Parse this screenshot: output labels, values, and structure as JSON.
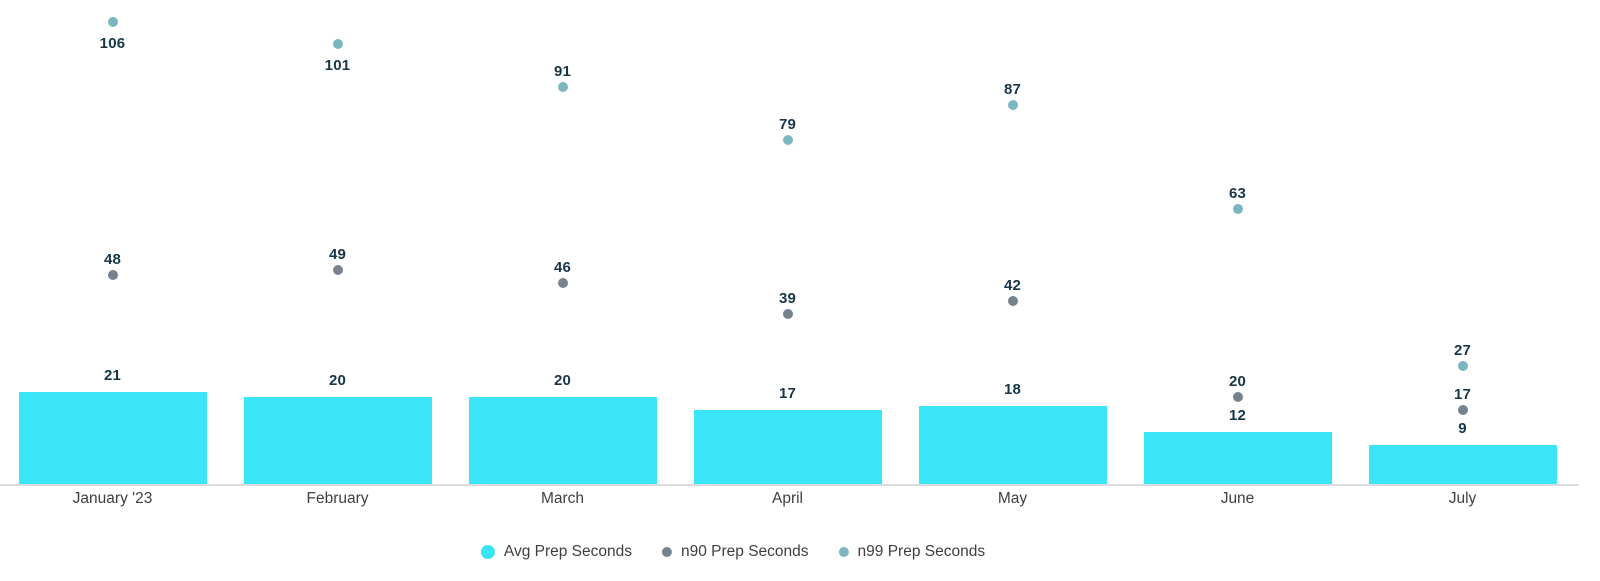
{
  "chart_data": {
    "type": "combo",
    "title": "",
    "xlabel": "",
    "ylabel": "",
    "categories": [
      "January '23",
      "February",
      "March",
      "April",
      "May",
      "June",
      "July"
    ],
    "series": [
      {
        "name": "Avg Prep Seconds",
        "type": "bar",
        "color": "#3BE5F8",
        "values": [
          21,
          20,
          20,
          17,
          18,
          12,
          9
        ]
      },
      {
        "name": "n90 Prep Seconds",
        "type": "scatter",
        "color": "#76828D",
        "values": [
          48,
          49,
          46,
          39,
          42,
          20,
          17
        ]
      },
      {
        "name": "n99 Prep Seconds",
        "type": "scatter",
        "color": "#7CB6C0",
        "values": [
          106,
          101,
          91,
          79,
          87,
          63,
          27
        ],
        "labels_below_indices": [
          0,
          1
        ]
      }
    ],
    "ylim": [
      0,
      111
    ],
    "grid": false,
    "y_axis_visible": false,
    "legend_position": "bottom",
    "value_labels_visible": true,
    "value_label_color": "#17364A",
    "axis_label_color": "#3C4043",
    "axis_line_color": "#DADCE0",
    "legend_text_color": "#3C4043",
    "background_color": "#FFFFFF"
  }
}
